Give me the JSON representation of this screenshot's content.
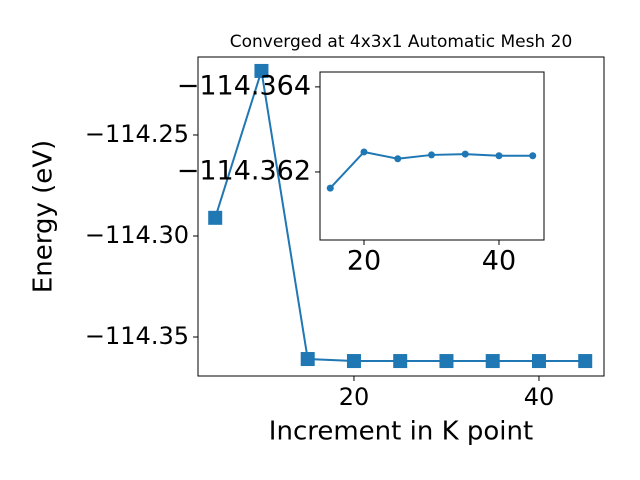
{
  "chart_data": [
    {
      "type": "line",
      "title": "Converged at 4x3x1 Automatic Mesh 20",
      "xlabel": "Increment in K point",
      "ylabel": "Energy (eV)",
      "x": [
        5,
        10,
        15,
        20,
        25,
        30,
        35,
        40,
        45
      ],
      "values": [
        -114.291,
        -114.2183,
        -114.3609,
        -114.3619,
        -114.3619,
        -114.3619,
        -114.3619,
        -114.3619,
        -114.3619
      ],
      "color": "#1f77b4",
      "marker": "square",
      "xlim": [
        3.14,
        47.03
      ],
      "ylim": [
        -114.3693,
        -114.2114
      ],
      "xticks": [
        20,
        40
      ],
      "yticks": [
        {
          "value": -114.25,
          "label": "−114.25"
        },
        {
          "value": -114.3,
          "label": "−114.30"
        },
        {
          "value": -114.35,
          "label": "−114.35"
        }
      ]
    },
    {
      "type": "line",
      "x": [
        15,
        20,
        25,
        30,
        35,
        40,
        45
      ],
      "values": [
        -114.36162,
        -114.36247,
        -114.36231,
        -114.3624,
        -114.36242,
        -114.36238,
        -114.36238
      ],
      "color": "#1f77b4",
      "marker": "circle",
      "xlim": [
        13.48,
        46.67
      ],
      "ylim": [
        -114.3604,
        -114.36435
      ],
      "xticks": [
        20,
        40
      ],
      "yticks": [
        {
          "value": -114.364,
          "label": "−114.364"
        },
        {
          "value": -114.362,
          "label": "−114.362"
        }
      ]
    }
  ]
}
